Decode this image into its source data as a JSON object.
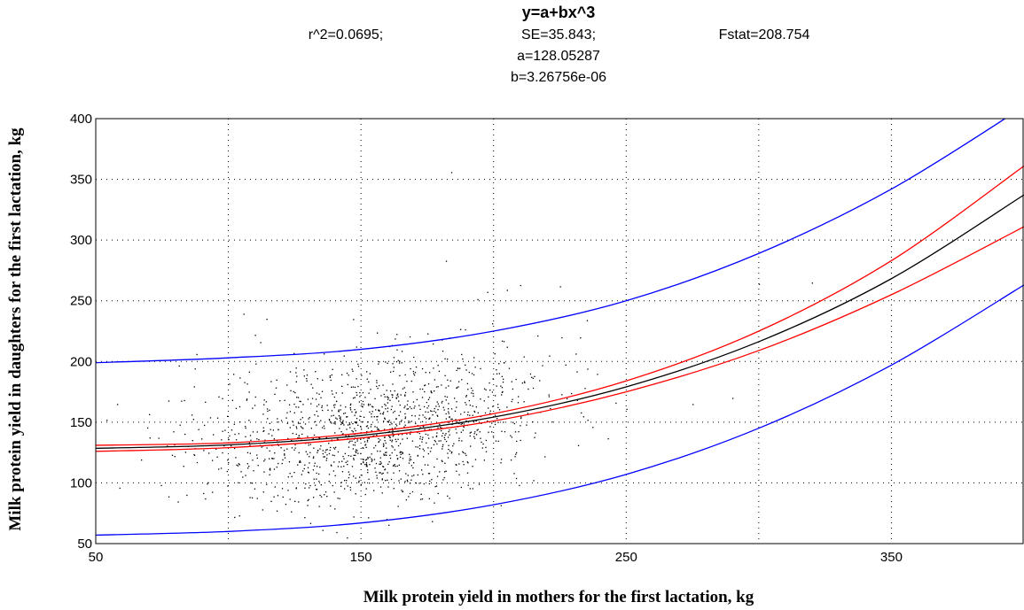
{
  "chart_data": {
    "type": "scatter",
    "title": "y=a+bx^3",
    "stats": {
      "r2": "r^2=0.0695;",
      "se": "SE=35.843;",
      "fstat": "Fstat=208.754",
      "a": "a=128.05287",
      "b": "b=3.26756e-06"
    },
    "model": {
      "a": 128.05287,
      "b": 3.26756e-06,
      "se": 35.843
    },
    "xlabel": "Milk protein yield in mothers for the first lactation, kg",
    "ylabel": "Milk protein yield in daughters for the first lactation, kg",
    "xlim": [
      50,
      400
    ],
    "ylim": [
      50,
      400
    ],
    "xticks": [
      50,
      150,
      250,
      350
    ],
    "yticks": [
      50,
      100,
      150,
      200,
      250,
      300,
      350,
      400
    ],
    "grid": true,
    "colors": {
      "fit": "#000000",
      "confidence": "#ff0000",
      "prediction": "#0000ff",
      "points": "#000000"
    },
    "series": [
      {
        "kind": "fit",
        "x": [
          50,
          100,
          150,
          200,
          250,
          300,
          350,
          400
        ],
        "y": [
          128.5,
          131.3,
          139.1,
          154.2,
          179.1,
          216.3,
          268.2,
          337.2
        ]
      },
      {
        "kind": "confidence-upper",
        "x": [
          50,
          100,
          150,
          200,
          250,
          300,
          350,
          400
        ],
        "y": [
          131,
          133,
          141,
          157,
          184,
          225,
          283,
          361
        ]
      },
      {
        "kind": "confidence-lower",
        "x": [
          50,
          100,
          150,
          200,
          250,
          300,
          350,
          400
        ],
        "y": [
          126,
          129,
          137,
          151,
          175,
          209,
          255,
          311
        ]
      },
      {
        "kind": "prediction-upper",
        "x": [
          50,
          100,
          150,
          200,
          250,
          300,
          350,
          400
        ],
        "y": [
          199,
          203,
          210,
          225,
          250,
          289,
          342,
          410
        ]
      },
      {
        "kind": "prediction-lower",
        "x": [
          50,
          100,
          150,
          200,
          250,
          300,
          350,
          400
        ],
        "y": [
          57,
          60,
          67,
          82,
          107,
          145,
          197,
          263
        ]
      },
      {
        "kind": "scatter",
        "cloud": {
          "n": 1400,
          "x_mean": 155,
          "x_sd": 32,
          "resid_sd": 30,
          "x_range": [
            55,
            255
          ],
          "y_range": [
            52,
            395
          ]
        },
        "outliers": [
          {
            "x": 184,
            "y": 356
          },
          {
            "x": 182,
            "y": 283
          },
          {
            "x": 210,
            "y": 263
          },
          {
            "x": 225,
            "y": 262
          },
          {
            "x": 205,
            "y": 259
          },
          {
            "x": 110,
            "y": 222
          },
          {
            "x": 112,
            "y": 216
          },
          {
            "x": 147,
            "y": 235
          },
          {
            "x": 58,
            "y": 165
          },
          {
            "x": 54,
            "y": 152
          },
          {
            "x": 275,
            "y": 165
          },
          {
            "x": 290,
            "y": 170
          },
          {
            "x": 300,
            "y": 264
          },
          {
            "x": 320,
            "y": 265
          }
        ]
      }
    ]
  }
}
